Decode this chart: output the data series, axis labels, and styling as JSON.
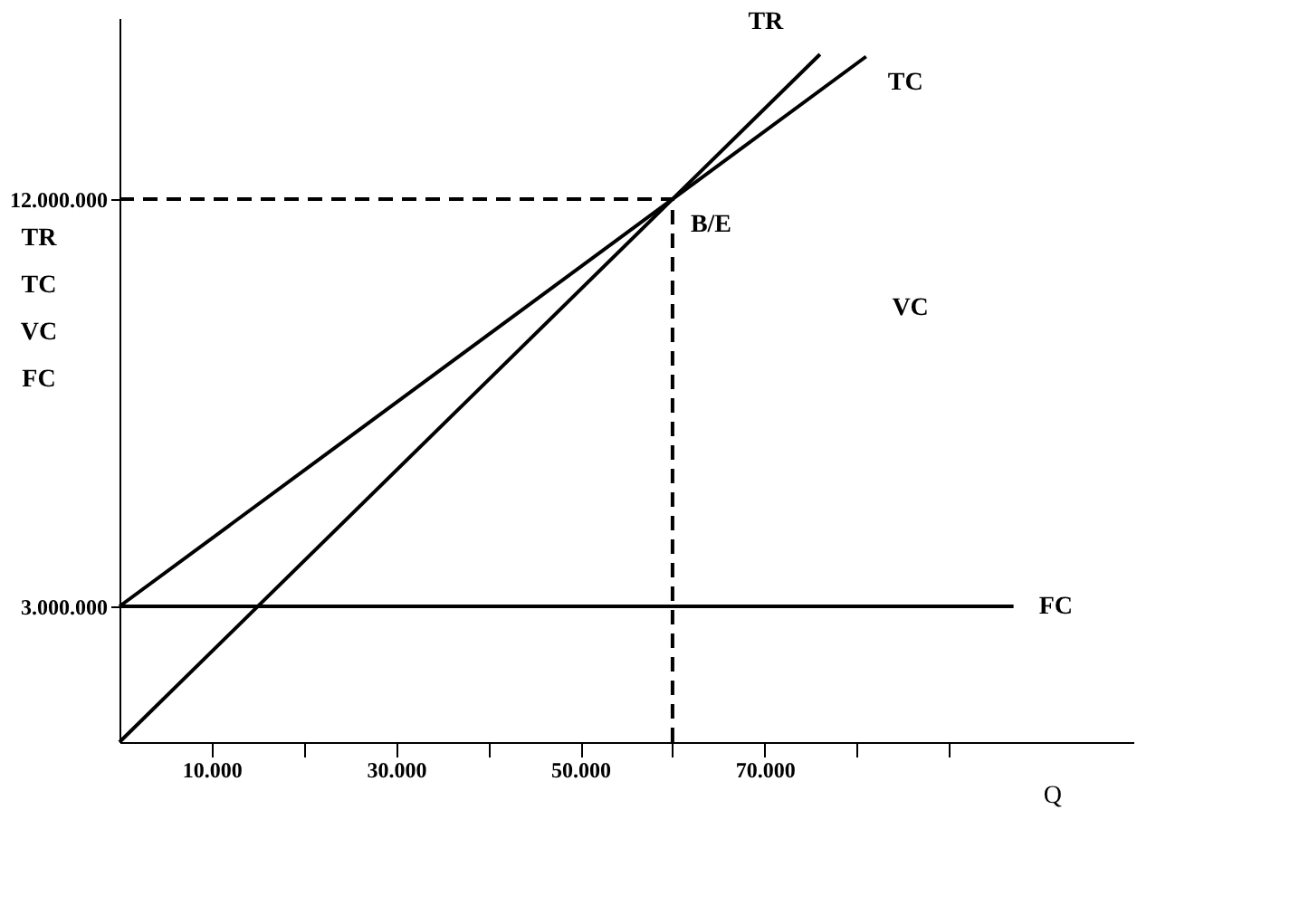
{
  "chart_data": {
    "type": "line",
    "xlabel": "Q",
    "ylabel": "TR\nTC\nVC\nFC",
    "xlim": [
      0,
      110000
    ],
    "ylim": [
      0,
      16000000
    ],
    "xticks": [
      {
        "value": 10000,
        "label": "10.000"
      },
      {
        "value": 20000,
        "label": null
      },
      {
        "value": 30000,
        "label": "30.000"
      },
      {
        "value": 40000,
        "label": null
      },
      {
        "value": 50000,
        "label": "50.000"
      },
      {
        "value": 60000,
        "label": null
      },
      {
        "value": 70000,
        "label": "70.000"
      },
      {
        "value": 80000,
        "label": null
      },
      {
        "value": 90000,
        "label": null
      }
    ],
    "yticks": [
      {
        "value": 3000000,
        "label": "3.000.000"
      },
      {
        "value": 12000000,
        "label": "12.000.000"
      }
    ],
    "series": [
      {
        "name": "TR",
        "color": "#000000",
        "x": [
          0,
          76000
        ],
        "values": [
          0,
          15200000
        ]
      },
      {
        "name": "TC",
        "color": "#000000",
        "x": [
          0,
          81000
        ],
        "values": [
          3000000,
          15150000
        ]
      },
      {
        "name": "FC",
        "color": "#000000",
        "x": [
          0,
          97000
        ],
        "values": [
          3000000,
          3000000
        ]
      },
      {
        "color": "#000000",
        "line_style": "dashed",
        "x": [
          0,
          60000
        ],
        "values": [
          12000000,
          12000000
        ]
      },
      {
        "color": "#000000",
        "line_style": "dashed",
        "x": [
          60000,
          60000
        ],
        "values": [
          0,
          12000000
        ]
      }
    ],
    "annotations": [
      {
        "text": "B/E",
        "x": 60000,
        "y": 12000000
      },
      "VC"
    ],
    "grid": false
  }
}
